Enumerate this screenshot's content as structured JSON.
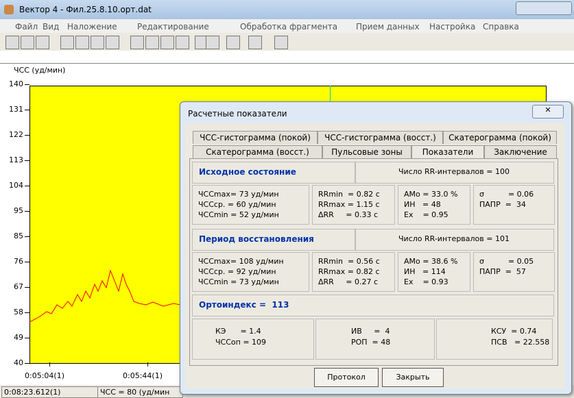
{
  "window": {
    "title": "Вектор 4 - Фил.25.8.10.орт.dat"
  },
  "menu": [
    "Файл",
    "Вид",
    "Наложение",
    "Редактирование",
    "Обработка фрагмента",
    "Прием данных",
    "Настройка",
    "Справка"
  ],
  "plot": {
    "y_label": "ЧСС (уд/мин)",
    "y_ticks": [
      "140",
      "131",
      "122",
      "113",
      "104",
      "95",
      "85",
      "76",
      "67",
      "58",
      "49",
      "40"
    ],
    "x_ticks": [
      "0:05:04(1)",
      "0:05:44(1)"
    ]
  },
  "status": [
    "0:08:23.612(1)",
    "ЧСС = 80 (уд/мин"
  ],
  "dialog": {
    "title": "Расчетные показатели",
    "tabs_row1": [
      "ЧСС-гистограмма (покой)",
      "ЧСС-гистограмма (восст.)",
      "Скатерограмма (покой)"
    ],
    "tabs_row2": [
      "Скатерограмма (восст.)",
      "Пульсовые зоны",
      "Показатели",
      "Заключение"
    ],
    "rest": {
      "heading": "Исходное состояние",
      "count": "Число RR-интервалов = 100",
      "cols": [
        [
          "ЧССmax= 73 уд/мин",
          "ЧССср. = 60 уд/мин",
          "ЧССmin = 52 уд/мин"
        ],
        [
          "RRmin  = 0.82 с",
          "RRmax = 1.15 с",
          "ΔRR     = 0.33 с"
        ],
        [
          "AMo = 33.0 %",
          "ИН   = 48",
          "Ex    = 0.95"
        ],
        [
          "σ          = 0.06",
          "ПАПР  =  34"
        ]
      ]
    },
    "recovery": {
      "heading": "Период восстановления",
      "count": "Число RR-интервалов = 101",
      "cols": [
        [
          "ЧССmax= 108 уд/мин",
          "ЧССср. = 92 уд/мин",
          "ЧССmin = 73 уд/мин"
        ],
        [
          "RRmin  = 0.56 с",
          "RRmax = 0.82 с",
          "ΔRR     = 0.27 с"
        ],
        [
          "AMo = 38.6 %",
          "ИН   = 114",
          "Ex    = 0.93"
        ],
        [
          "σ          = 0.05",
          "ПАПР  =  57"
        ]
      ]
    },
    "orthoindex": "Ортоиндекс =  113",
    "summary": [
      [
        "КЭ      = 1.4",
        "ЧССоп = 109"
      ],
      [
        "ИВ     =  4",
        "РОП  = 48"
      ],
      [
        "КСУ  = 0.74",
        "ПСВ   = 22.558"
      ]
    ],
    "buttons": [
      "Протокол",
      "Закрыть"
    ]
  }
}
